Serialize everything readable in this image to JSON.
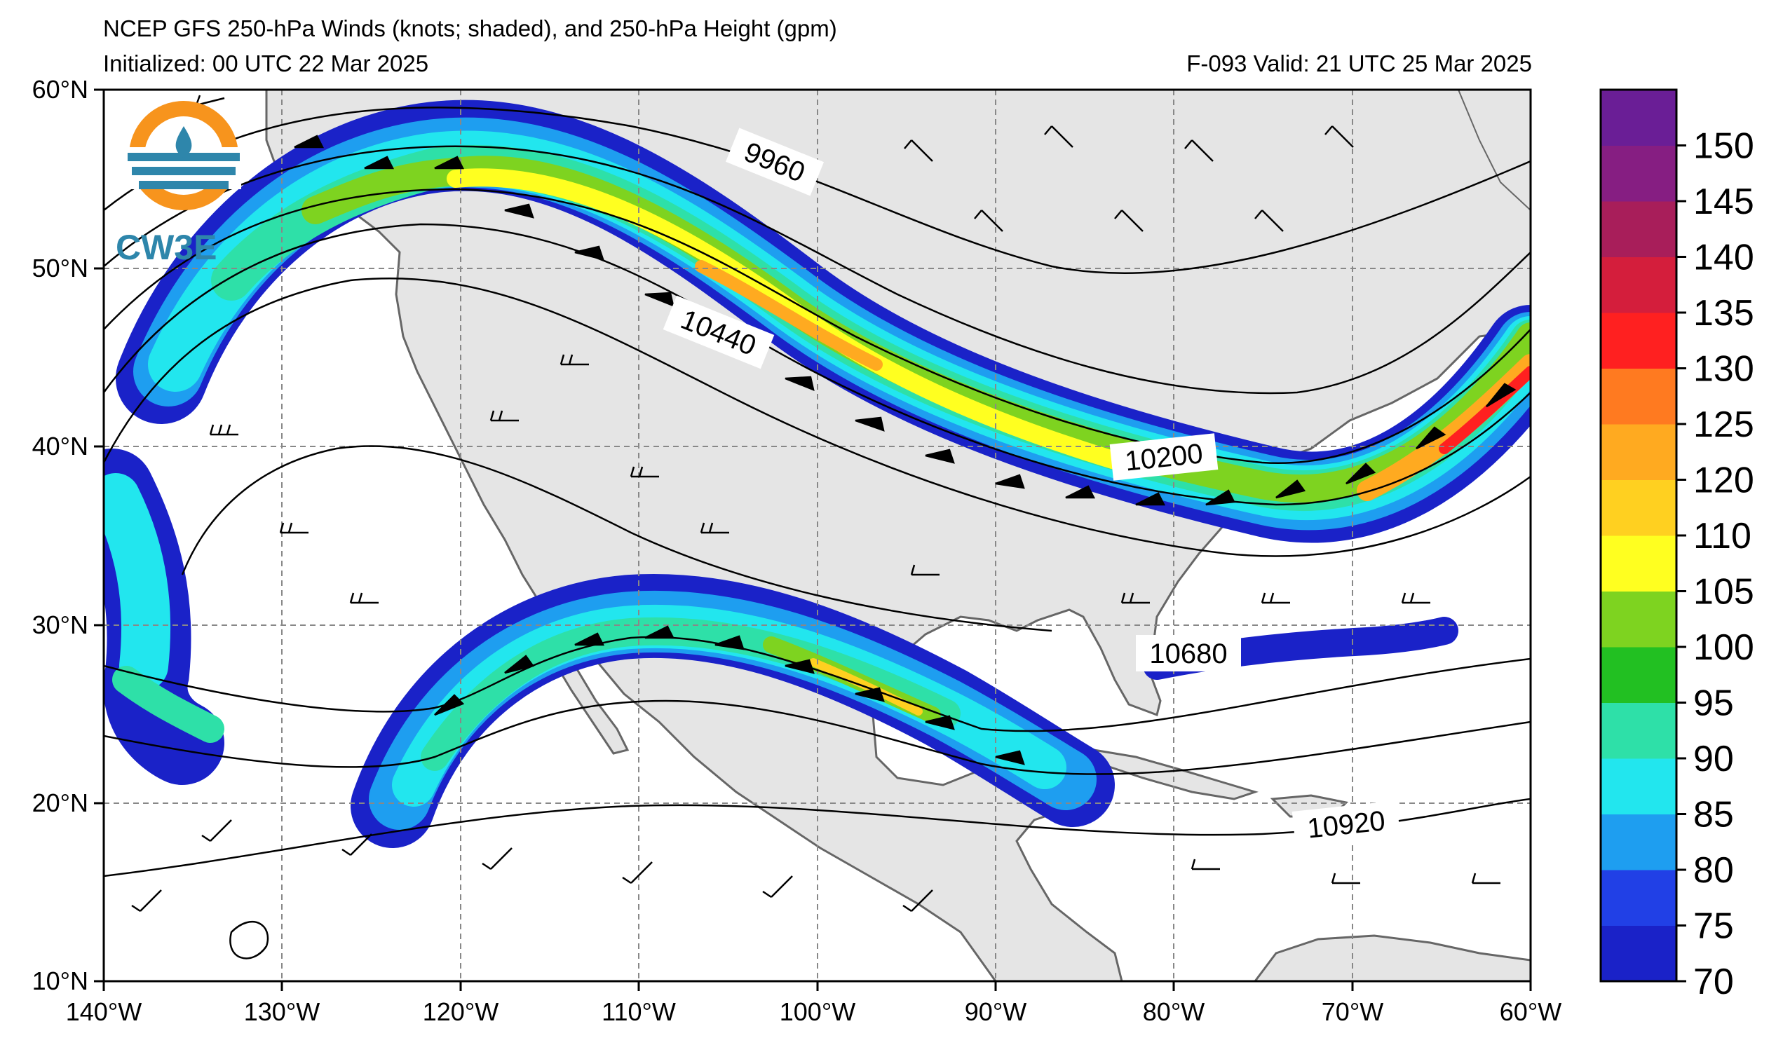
{
  "header": {
    "title": "NCEP GFS 250-hPa Winds (knots; shaded), and 250-hPa Height (gpm)",
    "initialized": "Initialized: 00 UTC 22 Mar 2025",
    "valid": "F-093  Valid: 21 UTC 25 Mar 2025"
  },
  "logo": {
    "text": "CW3E"
  },
  "axes": {
    "lon_labels": [
      "140°W",
      "130°W",
      "120°W",
      "110°W",
      "100°W",
      "90°W",
      "80°W",
      "70°W",
      "60°W"
    ],
    "lat_labels": [
      "60°N",
      "50°N",
      "40°N",
      "30°N",
      "20°N",
      "10°N"
    ]
  },
  "contour_labels": [
    "9960",
    "10440",
    "10200",
    "10680",
    "10920"
  ],
  "colorbar": {
    "ticks": [
      "70",
      "75",
      "80",
      "85",
      "90",
      "95",
      "100",
      "105",
      "110",
      "120",
      "125",
      "130",
      "135",
      "140",
      "145",
      "150"
    ],
    "colors": [
      "#1a22c8",
      "#2140e6",
      "#1e9ef0",
      "#22e6ee",
      "#2ee0a8",
      "#22c022",
      "#7ed320",
      "#ffff20",
      "#ffd020",
      "#ffaa20",
      "#ff7a20",
      "#ff2020",
      "#d41e3c",
      "#a81e5a",
      "#861e82",
      "#6a1e96"
    ]
  }
}
